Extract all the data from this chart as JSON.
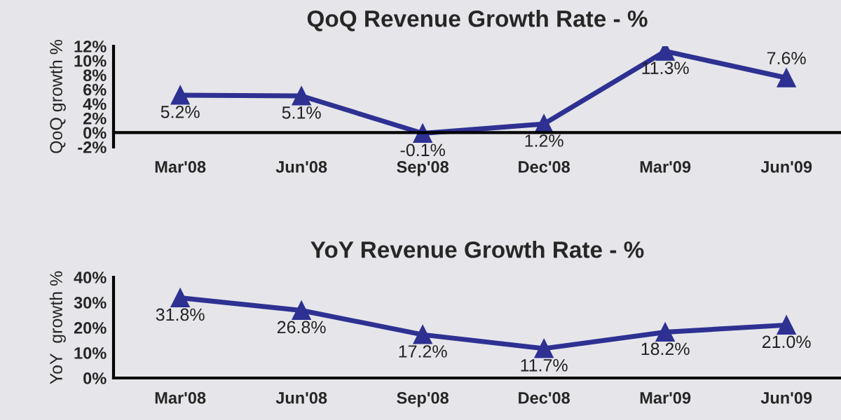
{
  "chart_data": [
    {
      "type": "line",
      "title": "QoQ Revenue Growth Rate - %",
      "ylabel": "QoQ growth %",
      "categories": [
        "Mar'08",
        "Jun'08",
        "Sep'08",
        "Dec'08",
        "Mar'09",
        "Jun'09"
      ],
      "series": [
        {
          "color": "#2e3192",
          "values": [
            5.2,
            5.1,
            -0.1,
            1.2,
            11.3,
            7.6
          ],
          "value_labels": [
            "5.2%",
            "5.1%",
            "-0.1%",
            "1.2%",
            "11.3%",
            "7.6%"
          ]
        }
      ],
      "ylim": [
        -2,
        12
      ],
      "yticks": [
        {
          "value": -2,
          "label": "-2%"
        },
        {
          "value": 0,
          "label": "0%"
        },
        {
          "value": 2,
          "label": "2%"
        },
        {
          "value": 4,
          "label": "4%"
        },
        {
          "value": 6,
          "label": "6%"
        },
        {
          "value": 8,
          "label": "8%"
        },
        {
          "value": 10,
          "label": "10%"
        },
        {
          "value": 12,
          "label": "12%"
        }
      ],
      "marker": "triangle",
      "line_style": "solid",
      "grid": false,
      "legend": false
    },
    {
      "type": "line",
      "title": "YoY Revenue Growth Rate - %",
      "ylabel": "YoY  growth %",
      "categories": [
        "Mar'08",
        "Jun'08",
        "Sep'08",
        "Dec'08",
        "Mar'09",
        "Jun'09"
      ],
      "series": [
        {
          "color": "#2e3192",
          "values": [
            31.8,
            26.8,
            17.2,
            11.7,
            18.2,
            21.0
          ],
          "value_labels": [
            "31.8%",
            "26.8%",
            "17.2%",
            "11.7%",
            "18.2%",
            "21.0%"
          ]
        }
      ],
      "ylim": [
        0,
        40
      ],
      "yticks": [
        {
          "value": 0,
          "label": "0%"
        },
        {
          "value": 10,
          "label": "10%"
        },
        {
          "value": 20,
          "label": "20%"
        },
        {
          "value": 30,
          "label": "30%"
        },
        {
          "value": 40,
          "label": "40%"
        }
      ],
      "marker": "triangle",
      "line_style": "solid",
      "grid": false,
      "legend": false
    }
  ]
}
